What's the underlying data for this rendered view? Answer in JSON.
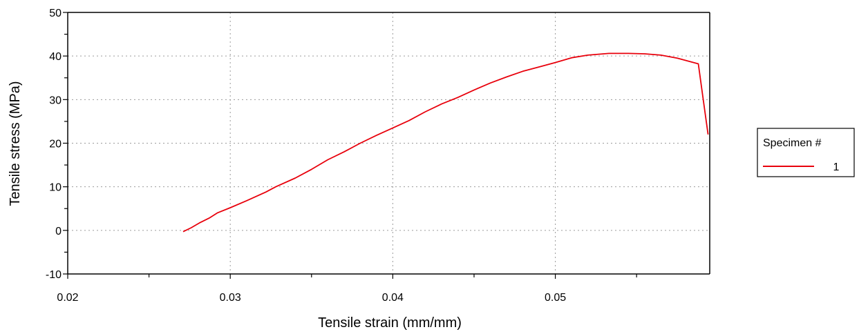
{
  "chart_data": {
    "type": "line",
    "title": "",
    "xlabel": "Tensile strain (mm/mm)",
    "ylabel": "Tensile stress (MPa)",
    "xlim": [
      0.02,
      0.0595
    ],
    "ylim": [
      -10,
      50
    ],
    "xticks": [
      0.02,
      0.03,
      0.04,
      0.05
    ],
    "xtick_labels": [
      "0.02",
      "0.03",
      "0.04",
      "0.05"
    ],
    "yticks": [
      -10,
      0,
      10,
      20,
      30,
      40,
      50
    ],
    "ytick_labels": [
      "-10",
      "0",
      "10",
      "20",
      "30",
      "40",
      "50"
    ],
    "grid": true,
    "legend": {
      "title": "Specimen #",
      "placement": "right",
      "entries": [
        {
          "label": "1",
          "color": "#e8000b"
        }
      ]
    },
    "series": [
      {
        "name": "1",
        "color": "#e8000b",
        "x": [
          0.0271,
          0.0276,
          0.0281,
          0.0287,
          0.0292,
          0.03,
          0.031,
          0.0322,
          0.0328,
          0.034,
          0.035,
          0.036,
          0.037,
          0.038,
          0.039,
          0.04,
          0.041,
          0.042,
          0.043,
          0.044,
          0.045,
          0.046,
          0.047,
          0.048,
          0.049,
          0.05,
          0.051,
          0.052,
          0.0533,
          0.0545,
          0.0555,
          0.0565,
          0.0575,
          0.0588,
          0.0591,
          0.0594
        ],
        "y": [
          -0.3,
          0.6,
          1.7,
          2.8,
          4.0,
          5.2,
          6.8,
          8.8,
          10.0,
          12.0,
          14.0,
          16.2,
          18.0,
          20.0,
          21.8,
          23.5,
          25.2,
          27.2,
          29.0,
          30.5,
          32.2,
          33.8,
          35.2,
          36.5,
          37.5,
          38.5,
          39.6,
          40.2,
          40.6,
          40.6,
          40.5,
          40.2,
          39.5,
          38.2,
          30.0,
          22.0
        ]
      }
    ]
  }
}
